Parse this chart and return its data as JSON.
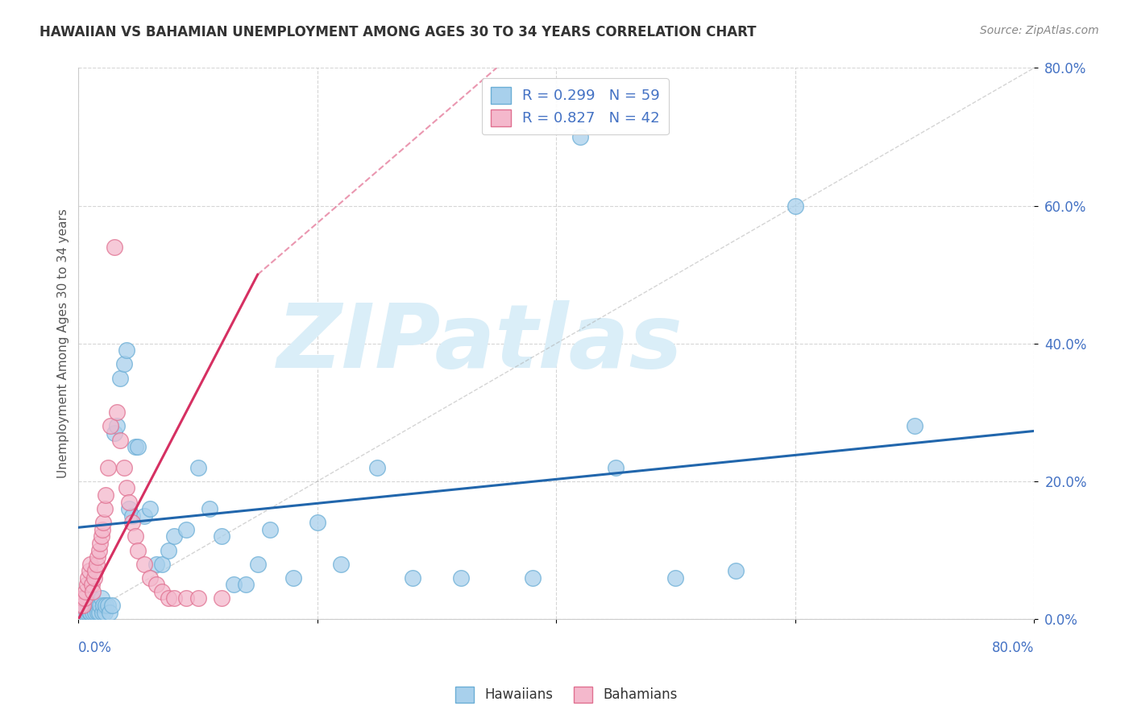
{
  "title": "HAWAIIAN VS BAHAMIAN UNEMPLOYMENT AMONG AGES 30 TO 34 YEARS CORRELATION CHART",
  "source": "Source: ZipAtlas.com",
  "ylabel": "Unemployment Among Ages 30 to 34 years",
  "xlim": [
    0.0,
    0.8
  ],
  "ylim": [
    0.0,
    0.8
  ],
  "legend_label1": "Hawaiians",
  "legend_label2": "Bahamians",
  "R_hawaiian": 0.299,
  "N_hawaiian": 59,
  "R_bahamian": 0.827,
  "N_bahamian": 42,
  "dot_color_hawaiian": "#a8d0ec",
  "dot_color_bahamian": "#f4b8cc",
  "dot_edge_hawaiian": "#6baed6",
  "dot_edge_bahamian": "#e07090",
  "line_color_hawaiian": "#2166ac",
  "line_color_bahamian": "#d63062",
  "watermark_text": "ZIPatlas",
  "watermark_color": "#daeef8",
  "background_color": "#ffffff",
  "grid_color": "#cccccc",
  "title_color": "#333333",
  "source_color": "#888888",
  "tick_color": "#4472c4",
  "ylabel_color": "#555555",
  "hawaiian_x": [
    0.003,
    0.005,
    0.007,
    0.008,
    0.009,
    0.01,
    0.01,
    0.011,
    0.012,
    0.013,
    0.014,
    0.015,
    0.016,
    0.017,
    0.018,
    0.019,
    0.02,
    0.021,
    0.022,
    0.023,
    0.025,
    0.026,
    0.028,
    0.03,
    0.032,
    0.035,
    0.038,
    0.04,
    0.042,
    0.045,
    0.048,
    0.05,
    0.055,
    0.06,
    0.065,
    0.07,
    0.075,
    0.08,
    0.09,
    0.1,
    0.11,
    0.12,
    0.13,
    0.14,
    0.15,
    0.16,
    0.18,
    0.2,
    0.22,
    0.25,
    0.28,
    0.32,
    0.38,
    0.42,
    0.45,
    0.5,
    0.55,
    0.6,
    0.7
  ],
  "hawaiian_y": [
    0.02,
    0.01,
    0.01,
    0.02,
    0.01,
    0.02,
    0.01,
    0.03,
    0.01,
    0.02,
    0.01,
    0.02,
    0.01,
    0.01,
    0.02,
    0.03,
    0.01,
    0.02,
    0.01,
    0.02,
    0.02,
    0.01,
    0.02,
    0.27,
    0.28,
    0.35,
    0.37,
    0.39,
    0.16,
    0.15,
    0.25,
    0.25,
    0.15,
    0.16,
    0.08,
    0.08,
    0.1,
    0.12,
    0.13,
    0.22,
    0.16,
    0.12,
    0.05,
    0.05,
    0.08,
    0.13,
    0.06,
    0.14,
    0.08,
    0.22,
    0.06,
    0.06,
    0.06,
    0.7,
    0.22,
    0.06,
    0.07,
    0.6,
    0.28
  ],
  "bahamian_x": [
    0.002,
    0.003,
    0.004,
    0.005,
    0.006,
    0.007,
    0.008,
    0.009,
    0.01,
    0.011,
    0.012,
    0.013,
    0.014,
    0.015,
    0.016,
    0.017,
    0.018,
    0.019,
    0.02,
    0.021,
    0.022,
    0.023,
    0.025,
    0.027,
    0.03,
    0.032,
    0.035,
    0.038,
    0.04,
    0.042,
    0.045,
    0.048,
    0.05,
    0.055,
    0.06,
    0.065,
    0.07,
    0.075,
    0.08,
    0.09,
    0.1,
    0.12
  ],
  "bahamian_y": [
    0.02,
    0.03,
    0.02,
    0.03,
    0.04,
    0.05,
    0.06,
    0.07,
    0.08,
    0.05,
    0.04,
    0.06,
    0.07,
    0.08,
    0.09,
    0.1,
    0.11,
    0.12,
    0.13,
    0.14,
    0.16,
    0.18,
    0.22,
    0.28,
    0.54,
    0.3,
    0.26,
    0.22,
    0.19,
    0.17,
    0.14,
    0.12,
    0.1,
    0.08,
    0.06,
    0.05,
    0.04,
    0.03,
    0.03,
    0.03,
    0.03,
    0.03
  ],
  "blue_line_x0": 0.0,
  "blue_line_y0": 0.133,
  "blue_line_x1": 0.8,
  "blue_line_y1": 0.273,
  "pink_line_x0": 0.0,
  "pink_line_y0": 0.0,
  "pink_line_x1": 0.15,
  "pink_line_y1": 0.5
}
